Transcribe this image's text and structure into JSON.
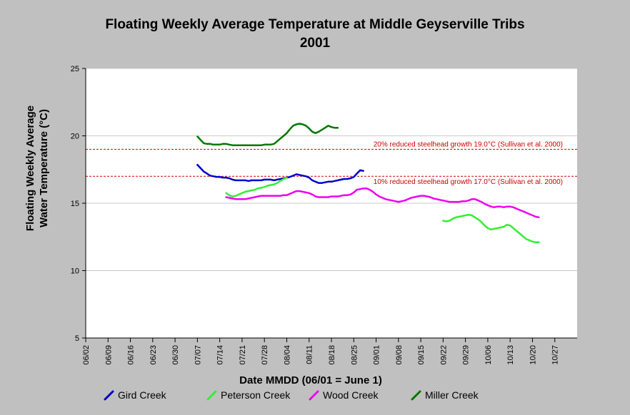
{
  "chart_data": {
    "type": "line",
    "title_lines": [
      "Floating Weekly Average Temperature at Middle Geyserville Tribs",
      "2001"
    ],
    "xlabel": "Date MMDD (06/01 = June 1)",
    "ylabel_lines": [
      "Floating Weekly Average",
      "Water Temperature (°C)"
    ],
    "ylim": [
      5,
      25
    ],
    "yticks": [
      5,
      10,
      15,
      20,
      25
    ],
    "xlim": [
      "06/02",
      "11/03"
    ],
    "xticks": [
      "06/02",
      "06/09",
      "06/16",
      "06/23",
      "06/30",
      "07/07",
      "07/14",
      "07/21",
      "07/28",
      "08/04",
      "08/11",
      "08/18",
      "08/25",
      "09/01",
      "09/08",
      "09/15",
      "09/22",
      "09/29",
      "10/06",
      "10/13",
      "10/20",
      "10/27"
    ],
    "grid": "horizontal",
    "colors": {
      "background": "#c0c0c0",
      "plot_background": "#ffffff",
      "reference": "#cc0000",
      "gird": "#0000cc",
      "peterson": "#33ee33",
      "wood": "#ee00ee",
      "miller": "#007700"
    },
    "reference_lines": [
      {
        "y": 19.0,
        "label": "20% reduced steelhead growth 19.0°C (Sullivan et al. 2000)"
      },
      {
        "y": 17.0,
        "label": "10% reduced steelhead growth 17.0°C (Sullivan et al. 2000)"
      }
    ],
    "series": [
      {
        "name": "Gird Creek",
        "color": "#0000cc",
        "points": [
          [
            "07/07",
            17.85
          ],
          [
            "07/08",
            17.6
          ],
          [
            "07/09",
            17.35
          ],
          [
            "07/10",
            17.2
          ],
          [
            "07/11",
            17.05
          ],
          [
            "07/12",
            17.0
          ],
          [
            "07/13",
            16.95
          ],
          [
            "07/14",
            16.95
          ],
          [
            "07/15",
            16.9
          ],
          [
            "07/16",
            16.9
          ],
          [
            "07/17",
            16.85
          ],
          [
            "07/18",
            16.75
          ],
          [
            "07/19",
            16.7
          ],
          [
            "07/20",
            16.7
          ],
          [
            "07/21",
            16.7
          ],
          [
            "07/22",
            16.7
          ],
          [
            "07/23",
            16.65
          ],
          [
            "07/24",
            16.7
          ],
          [
            "07/25",
            16.7
          ],
          [
            "07/26",
            16.7
          ],
          [
            "07/27",
            16.7
          ],
          [
            "07/28",
            16.75
          ],
          [
            "07/29",
            16.75
          ],
          [
            "07/30",
            16.75
          ],
          [
            "07/31",
            16.7
          ],
          [
            "08/01",
            16.75
          ],
          [
            "08/02",
            16.8
          ],
          [
            "08/03",
            16.85
          ],
          [
            "08/04",
            16.9
          ],
          [
            "08/05",
            16.95
          ],
          [
            "08/06",
            17.05
          ],
          [
            "08/07",
            17.15
          ],
          [
            "08/08",
            17.1
          ],
          [
            "08/09",
            17.05
          ],
          [
            "08/10",
            17.0
          ],
          [
            "08/11",
            16.9
          ],
          [
            "08/12",
            16.7
          ],
          [
            "08/13",
            16.6
          ],
          [
            "08/14",
            16.5
          ],
          [
            "08/15",
            16.5
          ],
          [
            "08/16",
            16.55
          ],
          [
            "08/17",
            16.6
          ],
          [
            "08/18",
            16.6
          ],
          [
            "08/19",
            16.65
          ],
          [
            "08/20",
            16.7
          ],
          [
            "08/21",
            16.75
          ],
          [
            "08/22",
            16.8
          ],
          [
            "08/23",
            16.8
          ],
          [
            "08/24",
            16.85
          ],
          [
            "08/25",
            16.95
          ],
          [
            "08/26",
            17.2
          ],
          [
            "08/27",
            17.45
          ],
          [
            "08/28",
            17.4
          ]
        ]
      },
      {
        "name": "Peterson Creek",
        "color": "#33ee33",
        "points": [
          [
            "07/16",
            15.75
          ],
          [
            "07/17",
            15.6
          ],
          [
            "07/18",
            15.5
          ],
          [
            "07/19",
            15.55
          ],
          [
            "07/20",
            15.65
          ],
          [
            "07/21",
            15.75
          ],
          [
            "07/22",
            15.85
          ],
          [
            "07/23",
            15.9
          ],
          [
            "07/24",
            15.95
          ],
          [
            "07/25",
            16.0
          ],
          [
            "07/26",
            16.1
          ],
          [
            "07/27",
            16.15
          ],
          [
            "07/28",
            16.2
          ],
          [
            "07/29",
            16.3
          ],
          [
            "07/30",
            16.35
          ],
          [
            "07/31",
            16.4
          ],
          [
            "08/01",
            16.5
          ],
          [
            "08/02",
            16.65
          ],
          [
            "08/03",
            16.8
          ],
          [
            "08/04",
            16.9
          ],
          null,
          [
            "09/22",
            13.7
          ],
          [
            "09/23",
            13.65
          ],
          [
            "09/24",
            13.7
          ],
          [
            "09/25",
            13.85
          ],
          [
            "09/26",
            13.95
          ],
          [
            "09/27",
            14.0
          ],
          [
            "09/28",
            14.05
          ],
          [
            "09/29",
            14.1
          ],
          [
            "09/30",
            14.15
          ],
          [
            "10/01",
            14.1
          ],
          [
            "10/02",
            13.95
          ],
          [
            "10/03",
            13.8
          ],
          [
            "10/04",
            13.6
          ],
          [
            "10/05",
            13.35
          ],
          [
            "10/06",
            13.15
          ],
          [
            "10/07",
            13.05
          ],
          [
            "10/08",
            13.1
          ],
          [
            "10/09",
            13.15
          ],
          [
            "10/10",
            13.2
          ],
          [
            "10/11",
            13.25
          ],
          [
            "10/12",
            13.4
          ],
          [
            "10/13",
            13.35
          ],
          [
            "10/14",
            13.15
          ],
          [
            "10/15",
            12.95
          ],
          [
            "10/16",
            12.75
          ],
          [
            "10/17",
            12.55
          ],
          [
            "10/18",
            12.35
          ],
          [
            "10/19",
            12.25
          ],
          [
            "10/20",
            12.15
          ],
          [
            "10/21",
            12.1
          ],
          [
            "10/22",
            12.1
          ]
        ]
      },
      {
        "name": "Wood Creek",
        "color": "#ee00ee",
        "points": [
          [
            "07/16",
            15.45
          ],
          [
            "07/17",
            15.4
          ],
          [
            "07/18",
            15.35
          ],
          [
            "07/19",
            15.3
          ],
          [
            "07/20",
            15.3
          ],
          [
            "07/21",
            15.3
          ],
          [
            "07/22",
            15.3
          ],
          [
            "07/23",
            15.35
          ],
          [
            "07/24",
            15.4
          ],
          [
            "07/25",
            15.45
          ],
          [
            "07/26",
            15.5
          ],
          [
            "07/27",
            15.55
          ],
          [
            "07/28",
            15.55
          ],
          [
            "07/29",
            15.55
          ],
          [
            "07/30",
            15.55
          ],
          [
            "07/31",
            15.55
          ],
          [
            "08/01",
            15.55
          ],
          [
            "08/02",
            15.55
          ],
          [
            "08/03",
            15.6
          ],
          [
            "08/04",
            15.6
          ],
          [
            "08/05",
            15.7
          ],
          [
            "08/06",
            15.8
          ],
          [
            "08/07",
            15.9
          ],
          [
            "08/08",
            15.9
          ],
          [
            "08/09",
            15.85
          ],
          [
            "08/10",
            15.8
          ],
          [
            "08/11",
            15.75
          ],
          [
            "08/12",
            15.65
          ],
          [
            "08/13",
            15.5
          ],
          [
            "08/14",
            15.45
          ],
          [
            "08/15",
            15.45
          ],
          [
            "08/16",
            15.45
          ],
          [
            "08/17",
            15.45
          ],
          [
            "08/18",
            15.5
          ],
          [
            "08/19",
            15.5
          ],
          [
            "08/20",
            15.5
          ],
          [
            "08/21",
            15.55
          ],
          [
            "08/22",
            15.6
          ],
          [
            "08/23",
            15.6
          ],
          [
            "08/24",
            15.65
          ],
          [
            "08/25",
            15.8
          ],
          [
            "08/26",
            16.0
          ],
          [
            "08/27",
            16.05
          ],
          [
            "08/28",
            16.1
          ],
          [
            "08/29",
            16.1
          ],
          [
            "08/30",
            16.0
          ],
          [
            "08/31",
            15.85
          ],
          [
            "09/01",
            15.65
          ],
          [
            "09/02",
            15.5
          ],
          [
            "09/03",
            15.4
          ],
          [
            "09/04",
            15.3
          ],
          [
            "09/05",
            15.25
          ],
          [
            "09/06",
            15.2
          ],
          [
            "09/07",
            15.15
          ],
          [
            "09/08",
            15.1
          ],
          [
            "09/09",
            15.15
          ],
          [
            "09/10",
            15.2
          ],
          [
            "09/11",
            15.3
          ],
          [
            "09/12",
            15.4
          ],
          [
            "09/13",
            15.45
          ],
          [
            "09/14",
            15.5
          ],
          [
            "09/15",
            15.55
          ],
          [
            "09/16",
            15.55
          ],
          [
            "09/17",
            15.5
          ],
          [
            "09/18",
            15.45
          ],
          [
            "09/19",
            15.35
          ],
          [
            "09/20",
            15.3
          ],
          [
            "09/21",
            15.25
          ],
          [
            "09/22",
            15.2
          ],
          [
            "09/23",
            15.15
          ],
          [
            "09/24",
            15.1
          ],
          [
            "09/25",
            15.1
          ],
          [
            "09/26",
            15.1
          ],
          [
            "09/27",
            15.1
          ],
          [
            "09/28",
            15.15
          ],
          [
            "09/29",
            15.15
          ],
          [
            "09/30",
            15.2
          ],
          [
            "10/01",
            15.3
          ],
          [
            "10/02",
            15.3
          ],
          [
            "10/03",
            15.2
          ],
          [
            "10/04",
            15.1
          ],
          [
            "10/05",
            14.95
          ],
          [
            "10/06",
            14.85
          ],
          [
            "10/07",
            14.75
          ],
          [
            "10/08",
            14.7
          ],
          [
            "10/09",
            14.75
          ],
          [
            "10/10",
            14.75
          ],
          [
            "10/11",
            14.7
          ],
          [
            "10/12",
            14.75
          ],
          [
            "10/13",
            14.75
          ],
          [
            "10/14",
            14.7
          ],
          [
            "10/15",
            14.6
          ],
          [
            "10/16",
            14.5
          ],
          [
            "10/17",
            14.4
          ],
          [
            "10/18",
            14.3
          ],
          [
            "10/19",
            14.2
          ],
          [
            "10/20",
            14.1
          ],
          [
            "10/21",
            14.0
          ],
          [
            "10/22",
            13.95
          ]
        ]
      },
      {
        "name": "Miller Creek",
        "color": "#007700",
        "points": [
          [
            "07/07",
            19.95
          ],
          [
            "07/08",
            19.7
          ],
          [
            "07/09",
            19.45
          ],
          [
            "07/10",
            19.4
          ],
          [
            "07/11",
            19.4
          ],
          [
            "07/12",
            19.35
          ],
          [
            "07/13",
            19.35
          ],
          [
            "07/14",
            19.35
          ],
          [
            "07/15",
            19.4
          ],
          [
            "07/16",
            19.4
          ],
          [
            "07/17",
            19.35
          ],
          [
            "07/18",
            19.3
          ],
          [
            "07/19",
            19.3
          ],
          [
            "07/20",
            19.3
          ],
          [
            "07/21",
            19.3
          ],
          [
            "07/22",
            19.3
          ],
          [
            "07/23",
            19.3
          ],
          [
            "07/24",
            19.3
          ],
          [
            "07/25",
            19.3
          ],
          [
            "07/26",
            19.3
          ],
          [
            "07/27",
            19.3
          ],
          [
            "07/28",
            19.35
          ],
          [
            "07/29",
            19.35
          ],
          [
            "07/30",
            19.35
          ],
          [
            "07/31",
            19.4
          ],
          [
            "08/01",
            19.6
          ],
          [
            "08/02",
            19.8
          ],
          [
            "08/03",
            20.0
          ],
          [
            "08/04",
            20.2
          ],
          [
            "08/05",
            20.5
          ],
          [
            "08/06",
            20.75
          ],
          [
            "08/07",
            20.85
          ],
          [
            "08/08",
            20.9
          ],
          [
            "08/09",
            20.85
          ],
          [
            "08/10",
            20.75
          ],
          [
            "08/11",
            20.55
          ],
          [
            "08/12",
            20.3
          ],
          [
            "08/13",
            20.2
          ],
          [
            "08/14",
            20.3
          ],
          [
            "08/15",
            20.45
          ],
          [
            "08/16",
            20.6
          ],
          [
            "08/17",
            20.75
          ],
          [
            "08/18",
            20.65
          ],
          [
            "08/19",
            20.6
          ],
          [
            "08/20",
            20.6
          ]
        ]
      }
    ]
  }
}
